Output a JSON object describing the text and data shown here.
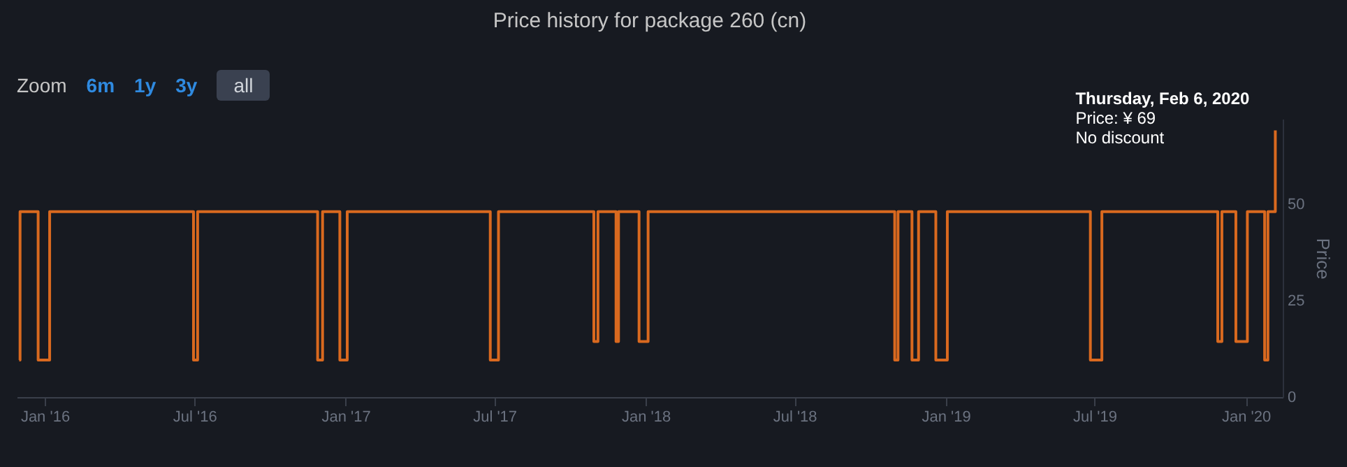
{
  "chart_data": {
    "type": "step",
    "title": "Price history for package 260 (cn)",
    "ylabel": "Price",
    "x": [
      "2015-12-01",
      "2015-12-02",
      "2015-12-24",
      "2016-01-07",
      "2016-06-30",
      "2016-07-05",
      "2016-11-28",
      "2016-12-04",
      "2016-12-25",
      "2017-01-03",
      "2017-06-26",
      "2017-07-06",
      "2017-10-30",
      "2017-11-04",
      "2017-11-26",
      "2017-11-29",
      "2017-12-24",
      "2018-01-04",
      "2018-10-31",
      "2018-11-04",
      "2018-11-21",
      "2018-11-29",
      "2018-12-20",
      "2019-01-03",
      "2019-06-26",
      "2019-07-10",
      "2019-11-28",
      "2019-12-03",
      "2019-12-20",
      "2020-01-03",
      "2020-01-24",
      "2020-01-28",
      "2020-02-06"
    ],
    "series": [
      {
        "color": "#d9691f",
        "values": [
          9.6,
          48,
          9.6,
          48,
          9.6,
          48,
          9.6,
          48,
          9.6,
          48,
          9.6,
          48,
          14.4,
          48,
          14.4,
          48,
          14.4,
          48,
          9.6,
          48,
          9.6,
          48,
          9.6,
          48,
          9.6,
          48,
          14.4,
          48,
          14.4,
          48,
          9.6,
          48,
          69
        ]
      }
    ],
    "xlim": [
      "2015-11-28",
      "2020-02-15"
    ],
    "xticks": [
      {
        "value": "2016-01-01",
        "label": "Jan '16"
      },
      {
        "value": "2016-07-01",
        "label": "Jul '16"
      },
      {
        "value": "2017-01-01",
        "label": "Jan '17"
      },
      {
        "value": "2017-07-01",
        "label": "Jul '17"
      },
      {
        "value": "2018-01-01",
        "label": "Jan '18"
      },
      {
        "value": "2018-07-01",
        "label": "Jul '18"
      },
      {
        "value": "2019-01-01",
        "label": "Jan '19"
      },
      {
        "value": "2019-07-01",
        "label": "Jul '19"
      },
      {
        "value": "2020-01-01",
        "label": "Jan '20"
      }
    ],
    "ylim": [
      0,
      72
    ],
    "yticks": [
      0,
      25,
      50
    ],
    "annotations": [
      "Zoom",
      "6m",
      "1y",
      "3y",
      "all",
      {
        "text": "Thursday, Feb 6, 2020\nPrice: ¥ 69\nNo discount",
        "x": "2020-02-06",
        "y": 69
      }
    ]
  }
}
